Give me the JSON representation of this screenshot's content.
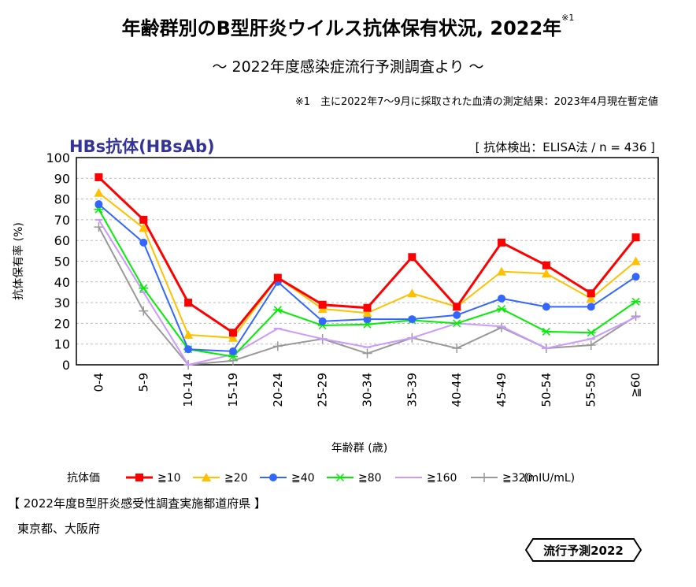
{
  "title": "年齢群別のB型肝炎ウイルス抗体保有状況, 2022年",
  "title_sup": "※1",
  "subtitle": "～ 2022年度感染症流行予測調査より ～",
  "note": "※1　主に2022年7～9月に採取された血清の測定結果：2023年4月現在暫定値",
  "panel_title": "HBs抗体(HBsAb)",
  "method": "[ 抗体検出：ELISA法 / n = 436 ]",
  "legend_title": "抗体価",
  "legend_unit": "(mIU/mL)",
  "footer_heading": "【 2022年度B型肝炎感受性調査実施都道府県 】",
  "footer_prefs": "東京都、大阪府",
  "badge": "流行予測2022",
  "chart_data": {
    "type": "line",
    "xlabel": "年齢群 (歳)",
    "ylabel": "抗体保有率 (%)",
    "ylim": [
      0,
      100
    ],
    "yticks": [
      0,
      10,
      20,
      30,
      40,
      50,
      60,
      70,
      80,
      90,
      100
    ],
    "grid": true,
    "legend_placement": "bottom",
    "categories": [
      "0-4",
      "5-9",
      "10-14",
      "15-19",
      "20-24",
      "25-29",
      "30-34",
      "35-39",
      "40-44",
      "45-49",
      "50-54",
      "55-59",
      "≧60"
    ],
    "series": [
      {
        "name": "≧10",
        "color": "#ff0000",
        "marker": "square",
        "values": [
          90.5,
          70,
          30,
          15.5,
          42,
          29,
          27.5,
          52,
          28,
          59,
          48,
          34.5,
          61.5
        ]
      },
      {
        "name": "≧20",
        "color": "#ffc000",
        "marker": "triangle",
        "values": [
          83,
          66,
          14.5,
          13,
          42,
          27,
          25,
          34.5,
          28,
          45,
          44,
          32,
          50
        ]
      },
      {
        "name": "≧40",
        "color": "#3366ff",
        "marker": "circle",
        "values": [
          77.5,
          59,
          7.5,
          6.5,
          40,
          21,
          22,
          22,
          24,
          32,
          28,
          28,
          42.5
        ]
      },
      {
        "name": "≧80",
        "color": "#00ee00",
        "marker": "asterisk",
        "values": [
          75,
          37,
          7.5,
          4,
          26.5,
          19,
          19.5,
          21.5,
          20,
          27,
          16,
          15.5,
          30.5
        ]
      },
      {
        "name": "≧160",
        "color": "#cc99ff",
        "marker": "dash",
        "values": [
          70,
          35,
          0,
          5,
          17.5,
          12.5,
          8.5,
          13,
          20,
          18.5,
          8,
          12.5,
          23
        ]
      },
      {
        "name": "≧320",
        "color": "#999999",
        "marker": "plus",
        "values": [
          66.5,
          26,
          0,
          2,
          9,
          12.5,
          5.5,
          13,
          8,
          18,
          8,
          9.5,
          23.5
        ]
      }
    ]
  }
}
